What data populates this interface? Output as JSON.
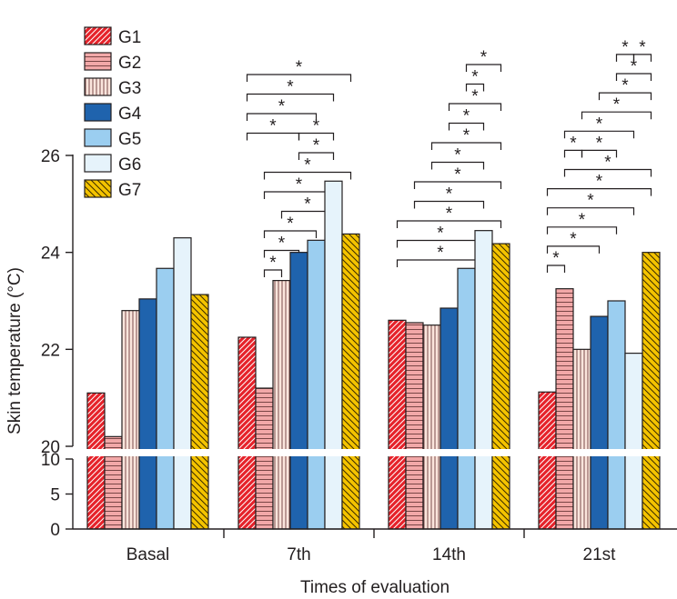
{
  "chart_data": {
    "type": "bar",
    "xlabel": "Times of evaluation",
    "ylabel": "Skin temperature (°C)",
    "axis_break": true,
    "upper_ylim": [
      20,
      26.6
    ],
    "upper_ticks": [
      "20",
      "22",
      "24",
      "26"
    ],
    "lower_ylim": [
      0,
      10
    ],
    "lower_ticks": [
      "0",
      "5",
      "10"
    ],
    "categories": [
      "Basal",
      "7th",
      "14th",
      "21st"
    ],
    "series": [
      {
        "name": "G1",
        "values": [
          21.1,
          22.25,
          22.6,
          21.12
        ],
        "color": "#e5222a",
        "pattern": "diag-up-white"
      },
      {
        "name": "G2",
        "values": [
          20.2,
          21.2,
          22.55,
          23.25
        ],
        "color": "#f2a8a8",
        "pattern": "horizontal-dark"
      },
      {
        "name": "G3",
        "values": [
          22.8,
          23.42,
          22.5,
          22.0
        ],
        "color": "#fbe5dc",
        "pattern": "vertical-dark"
      },
      {
        "name": "G4",
        "values": [
          23.04,
          24.0,
          22.85,
          22.68
        ],
        "color": "#1f63ad",
        "pattern": "none"
      },
      {
        "name": "G5",
        "values": [
          23.67,
          24.25,
          23.67,
          23.0
        ],
        "color": "#9bcef0",
        "pattern": "none"
      },
      {
        "name": "G6",
        "values": [
          24.3,
          25.47,
          24.45,
          21.92
        ],
        "color": "#e6f3fb",
        "pattern": "none"
      },
      {
        "name": "G7",
        "values": [
          23.13,
          24.38,
          24.18,
          24.0
        ],
        "color": "#f4c300",
        "pattern": "diag-down-dark"
      }
    ],
    "significance_marker": "*",
    "significance_brackets": [
      {
        "category": "7th",
        "from": "G2",
        "to": "G3",
        "level": 0
      },
      {
        "category": "7th",
        "from": "G2",
        "to": "G4",
        "level": 1
      },
      {
        "category": "7th",
        "from": "G2",
        "to": "G5",
        "level": 2
      },
      {
        "category": "7th",
        "from": "G3",
        "to": "G6",
        "level": 3
      },
      {
        "category": "7th",
        "from": "G2",
        "to": "G6",
        "level": 4
      },
      {
        "category": "7th",
        "from": "G2",
        "to": "G7",
        "level": 5
      },
      {
        "category": "7th",
        "from": "G4",
        "to": "G6",
        "level": 6
      },
      {
        "category": "7th",
        "from": "G1",
        "to": "G4",
        "level": 7
      },
      {
        "category": "7th",
        "from": "G4",
        "to": "G6",
        "level": 7
      },
      {
        "category": "7th",
        "from": "G1",
        "to": "G5",
        "level": 8
      },
      {
        "category": "7th",
        "from": "G1",
        "to": "G6",
        "level": 9
      },
      {
        "category": "7th",
        "from": "G1",
        "to": "G7",
        "level": 10
      },
      {
        "category": "14th",
        "from": "G1",
        "to": "G6",
        "level": 0
      },
      {
        "category": "14th",
        "from": "G1",
        "to": "G6",
        "level": 1
      },
      {
        "category": "14th",
        "from": "G1",
        "to": "G7",
        "level": 2
      },
      {
        "category": "14th",
        "from": "G2",
        "to": "G6",
        "level": 3
      },
      {
        "category": "14th",
        "from": "G2",
        "to": "G7",
        "level": 4
      },
      {
        "category": "14th",
        "from": "G3",
        "to": "G6",
        "level": 5
      },
      {
        "category": "14th",
        "from": "G3",
        "to": "G7",
        "level": 6
      },
      {
        "category": "14th",
        "from": "G4",
        "to": "G6",
        "level": 7
      },
      {
        "category": "14th",
        "from": "G4",
        "to": "G7",
        "level": 8
      },
      {
        "category": "14th",
        "from": "G5",
        "to": "G6",
        "level": 9
      },
      {
        "category": "14th",
        "from": "G5",
        "to": "G7",
        "level": 10
      },
      {
        "category": "21st",
        "from": "G1",
        "to": "G2",
        "level": 0
      },
      {
        "category": "21st",
        "from": "G1",
        "to": "G4",
        "level": 1
      },
      {
        "category": "21st",
        "from": "G1",
        "to": "G5",
        "level": 2
      },
      {
        "category": "21st",
        "from": "G1",
        "to": "G6",
        "level": 3
      },
      {
        "category": "21st",
        "from": "G1",
        "to": "G7",
        "level": 4
      },
      {
        "category": "21st",
        "from": "G2",
        "to": "G7",
        "level": 5
      },
      {
        "category": "21st",
        "from": "G2",
        "to": "G3",
        "level": 6
      },
      {
        "category": "21st",
        "from": "G3",
        "to": "G5",
        "level": 6
      },
      {
        "category": "21st",
        "from": "G2",
        "to": "G6",
        "level": 7
      },
      {
        "category": "21st",
        "from": "G3",
        "to": "G7",
        "level": 8
      },
      {
        "category": "21st",
        "from": "G4",
        "to": "G7",
        "level": 9
      },
      {
        "category": "21st",
        "from": "G5",
        "to": "G7",
        "level": 10
      },
      {
        "category": "21st",
        "from": "G5",
        "to": "G6",
        "level": 11
      },
      {
        "category": "21st",
        "from": "G6",
        "to": "G7",
        "level": 11
      }
    ]
  }
}
